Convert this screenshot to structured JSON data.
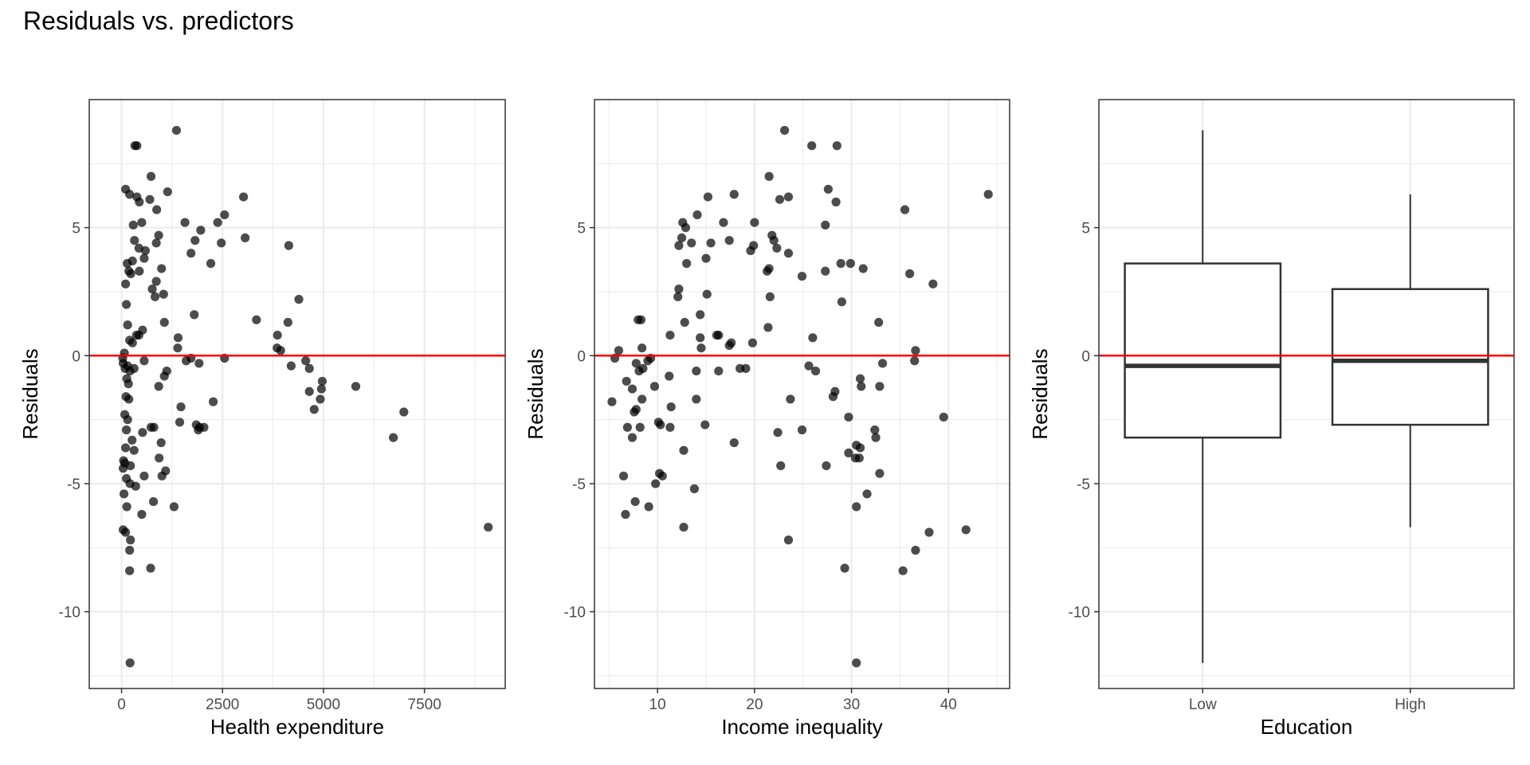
{
  "title": "Residuals vs. predictors",
  "colors": {
    "zero_line": "#ff0000",
    "point": "#000000",
    "grid": "#ebebeb",
    "border": "#333333"
  },
  "chart_data": [
    {
      "type": "scatter",
      "xlabel": "Health expenditure",
      "ylabel": "Residuals",
      "xlim": [
        -800,
        9500
      ],
      "ylim": [
        -13,
        10
      ],
      "xticks": [
        0,
        2500,
        5000,
        7500
      ],
      "yticks": [
        -10,
        -5,
        0,
        5
      ],
      "hline": 0,
      "grid": true,
      "points": [
        [
          1360,
          8.8
        ],
        [
          330,
          8.2
        ],
        [
          380,
          8.2
        ],
        [
          730,
          7.0
        ],
        [
          100,
          6.5
        ],
        [
          200,
          6.3
        ],
        [
          380,
          6.2
        ],
        [
          700,
          6.1
        ],
        [
          440,
          6.0
        ],
        [
          1140,
          6.4
        ],
        [
          3020,
          6.2
        ],
        [
          870,
          5.7
        ],
        [
          1570,
          5.2
        ],
        [
          2380,
          5.2
        ],
        [
          2550,
          5.5
        ],
        [
          290,
          5.1
        ],
        [
          500,
          5.2
        ],
        [
          1960,
          4.9
        ],
        [
          920,
          4.7
        ],
        [
          3060,
          4.6
        ],
        [
          320,
          4.5
        ],
        [
          860,
          4.4
        ],
        [
          1820,
          4.5
        ],
        [
          2470,
          4.4
        ],
        [
          4140,
          4.3
        ],
        [
          430,
          4.2
        ],
        [
          590,
          4.1
        ],
        [
          1720,
          4.0
        ],
        [
          140,
          3.6
        ],
        [
          270,
          3.7
        ],
        [
          560,
          3.8
        ],
        [
          2210,
          3.6
        ],
        [
          180,
          3.3
        ],
        [
          230,
          3.2
        ],
        [
          440,
          3.3
        ],
        [
          990,
          3.4
        ],
        [
          860,
          2.9
        ],
        [
          100,
          2.8
        ],
        [
          760,
          2.6
        ],
        [
          830,
          2.3
        ],
        [
          1040,
          2.4
        ],
        [
          4390,
          2.2
        ],
        [
          120,
          2.0
        ],
        [
          1800,
          1.6
        ],
        [
          3340,
          1.4
        ],
        [
          1060,
          1.3
        ],
        [
          4120,
          1.3
        ],
        [
          150,
          1.2
        ],
        [
          520,
          1.0
        ],
        [
          370,
          0.8
        ],
        [
          430,
          0.8
        ],
        [
          1400,
          0.7
        ],
        [
          200,
          0.6
        ],
        [
          270,
          0.5
        ],
        [
          3860,
          0.8
        ],
        [
          1390,
          0.3
        ],
        [
          3850,
          0.3
        ],
        [
          3940,
          0.2
        ],
        [
          70,
          0.1
        ],
        [
          30,
          -0.1
        ],
        [
          40,
          -0.3
        ],
        [
          560,
          -0.2
        ],
        [
          1600,
          -0.2
        ],
        [
          1720,
          -0.1
        ],
        [
          1920,
          -0.3
        ],
        [
          2550,
          -0.1
        ],
        [
          4200,
          -0.4
        ],
        [
          4560,
          -0.2
        ],
        [
          4650,
          -0.5
        ],
        [
          90,
          -0.5
        ],
        [
          150,
          -0.4
        ],
        [
          210,
          -0.6
        ],
        [
          310,
          -0.5
        ],
        [
          1120,
          -0.6
        ],
        [
          130,
          -0.9
        ],
        [
          1060,
          -0.8
        ],
        [
          170,
          -1.1
        ],
        [
          920,
          -1.2
        ],
        [
          4970,
          -1.0
        ],
        [
          5800,
          -1.2
        ],
        [
          4650,
          -1.4
        ],
        [
          4950,
          -1.3
        ],
        [
          110,
          -1.6
        ],
        [
          180,
          -1.7
        ],
        [
          4920,
          -1.7
        ],
        [
          1470,
          -2.0
        ],
        [
          2270,
          -1.8
        ],
        [
          4770,
          -2.1
        ],
        [
          6990,
          -2.2
        ],
        [
          80,
          -2.3
        ],
        [
          150,
          -2.5
        ],
        [
          1440,
          -2.6
        ],
        [
          1850,
          -2.7
        ],
        [
          1930,
          -2.8
        ],
        [
          2040,
          -2.8
        ],
        [
          1900,
          -2.9
        ],
        [
          120,
          -2.9
        ],
        [
          730,
          -2.8
        ],
        [
          800,
          -2.8
        ],
        [
          520,
          -3.0
        ],
        [
          260,
          -3.3
        ],
        [
          980,
          -3.4
        ],
        [
          6730,
          -3.2
        ],
        [
          100,
          -3.6
        ],
        [
          50,
          -4.1
        ],
        [
          310,
          -3.7
        ],
        [
          930,
          -4.0
        ],
        [
          80,
          -4.2
        ],
        [
          40,
          -4.4
        ],
        [
          220,
          -4.3
        ],
        [
          1090,
          -4.5
        ],
        [
          1000,
          -4.7
        ],
        [
          120,
          -4.8
        ],
        [
          560,
          -4.7
        ],
        [
          210,
          -5.0
        ],
        [
          350,
          -5.1
        ],
        [
          60,
          -5.4
        ],
        [
          790,
          -5.7
        ],
        [
          1300,
          -5.9
        ],
        [
          130,
          -5.9
        ],
        [
          500,
          -6.2
        ],
        [
          9080,
          -6.7
        ],
        [
          40,
          -6.8
        ],
        [
          100,
          -6.9
        ],
        [
          220,
          -7.2
        ],
        [
          200,
          -7.6
        ],
        [
          720,
          -8.3
        ],
        [
          200,
          -8.4
        ],
        [
          210,
          -12.0
        ]
      ]
    },
    {
      "type": "scatter",
      "xlabel": "Income inequality",
      "ylabel": "Residuals",
      "xlim": [
        3.5,
        46.3
      ],
      "ylim": [
        -13,
        10
      ],
      "xticks": [
        10,
        20,
        30,
        40
      ],
      "yticks": [
        -10,
        -5,
        0,
        5
      ],
      "hline": 0,
      "grid": true,
      "points": [
        [
          23.1,
          8.8
        ],
        [
          25.9,
          8.2
        ],
        [
          28.5,
          8.2
        ],
        [
          21.5,
          7.0
        ],
        [
          27.6,
          6.5
        ],
        [
          44.1,
          6.3
        ],
        [
          17.9,
          6.3
        ],
        [
          15.2,
          6.2
        ],
        [
          23.5,
          6.2
        ],
        [
          22.6,
          6.1
        ],
        [
          28.4,
          6.0
        ],
        [
          35.5,
          5.7
        ],
        [
          14.1,
          5.5
        ],
        [
          27.3,
          5.1
        ],
        [
          12.6,
          5.2
        ],
        [
          16.8,
          5.2
        ],
        [
          20.0,
          5.2
        ],
        [
          12.9,
          5.0
        ],
        [
          12.5,
          4.6
        ],
        [
          21.8,
          4.7
        ],
        [
          17.4,
          4.5
        ],
        [
          22.0,
          4.5
        ],
        [
          13.5,
          4.4
        ],
        [
          15.5,
          4.4
        ],
        [
          19.9,
          4.3
        ],
        [
          12.2,
          4.3
        ],
        [
          22.3,
          4.2
        ],
        [
          19.6,
          4.1
        ],
        [
          23.5,
          4.0
        ],
        [
          15.0,
          3.8
        ],
        [
          28.9,
          3.6
        ],
        [
          13.0,
          3.6
        ],
        [
          29.9,
          3.6
        ],
        [
          21.3,
          3.3
        ],
        [
          21.5,
          3.4
        ],
        [
          27.3,
          3.3
        ],
        [
          31.2,
          3.4
        ],
        [
          36.0,
          3.2
        ],
        [
          24.9,
          3.1
        ],
        [
          38.4,
          2.8
        ],
        [
          12.2,
          2.6
        ],
        [
          15.1,
          2.4
        ],
        [
          12.1,
          2.3
        ],
        [
          21.6,
          2.3
        ],
        [
          29.0,
          2.1
        ],
        [
          14.4,
          1.6
        ],
        [
          8.0,
          1.4
        ],
        [
          8.3,
          1.4
        ],
        [
          12.8,
          1.3
        ],
        [
          32.8,
          1.3
        ],
        [
          21.4,
          1.1
        ],
        [
          11.3,
          0.8
        ],
        [
          16.1,
          0.8
        ],
        [
          16.3,
          0.8
        ],
        [
          14.4,
          0.7
        ],
        [
          26.0,
          0.7
        ],
        [
          17.6,
          0.5
        ],
        [
          19.8,
          0.5
        ],
        [
          14.5,
          0.3
        ],
        [
          17.4,
          0.4
        ],
        [
          8.4,
          0.3
        ],
        [
          6.0,
          0.2
        ],
        [
          36.6,
          0.2
        ],
        [
          5.6,
          -0.1
        ],
        [
          9.3,
          -0.1
        ],
        [
          9.0,
          -0.2
        ],
        [
          7.8,
          -0.3
        ],
        [
          16.3,
          -0.6
        ],
        [
          18.5,
          -0.5
        ],
        [
          8.5,
          -0.5
        ],
        [
          19.1,
          -0.5
        ],
        [
          25.6,
          -0.4
        ],
        [
          26.3,
          -0.6
        ],
        [
          8.1,
          -0.6
        ],
        [
          33.2,
          -0.3
        ],
        [
          36.5,
          -0.2
        ],
        [
          11.2,
          -0.8
        ],
        [
          14.0,
          -0.6
        ],
        [
          30.9,
          -0.9
        ],
        [
          6.8,
          -1.0
        ],
        [
          7.4,
          -1.3
        ],
        [
          9.7,
          -1.2
        ],
        [
          28.3,
          -1.4
        ],
        [
          31.0,
          -1.2
        ],
        [
          32.9,
          -1.2
        ],
        [
          5.3,
          -1.8
        ],
        [
          8.4,
          -1.7
        ],
        [
          14.0,
          -1.7
        ],
        [
          23.7,
          -1.7
        ],
        [
          7.8,
          -2.1
        ],
        [
          7.6,
          -2.2
        ],
        [
          11.4,
          -2.0
        ],
        [
          28.1,
          -1.6
        ],
        [
          29.7,
          -2.4
        ],
        [
          39.5,
          -2.4
        ],
        [
          10.1,
          -2.6
        ],
        [
          10.3,
          -2.7
        ],
        [
          14.9,
          -2.7
        ],
        [
          8.2,
          -2.8
        ],
        [
          6.9,
          -2.8
        ],
        [
          11.3,
          -2.8
        ],
        [
          24.9,
          -2.9
        ],
        [
          32.4,
          -2.9
        ],
        [
          22.4,
          -3.0
        ],
        [
          32.5,
          -3.2
        ],
        [
          7.4,
          -3.2
        ],
        [
          17.9,
          -3.4
        ],
        [
          30.5,
          -3.5
        ],
        [
          30.9,
          -3.6
        ],
        [
          12.7,
          -3.7
        ],
        [
          29.7,
          -3.8
        ],
        [
          30.4,
          -4.0
        ],
        [
          30.8,
          -4.0
        ],
        [
          22.7,
          -4.3
        ],
        [
          27.4,
          -4.3
        ],
        [
          10.2,
          -4.6
        ],
        [
          10.5,
          -4.7
        ],
        [
          6.5,
          -4.7
        ],
        [
          32.9,
          -4.6
        ],
        [
          9.8,
          -5.0
        ],
        [
          13.8,
          -5.2
        ],
        [
          31.6,
          -5.4
        ],
        [
          7.7,
          -5.7
        ],
        [
          9.1,
          -5.9
        ],
        [
          30.5,
          -5.9
        ],
        [
          6.7,
          -6.2
        ],
        [
          12.7,
          -6.7
        ],
        [
          41.8,
          -6.8
        ],
        [
          38.0,
          -6.9
        ],
        [
          23.5,
          -7.2
        ],
        [
          36.6,
          -7.6
        ],
        [
          29.3,
          -8.3
        ],
        [
          35.3,
          -8.4
        ],
        [
          30.5,
          -12.0
        ]
      ]
    },
    {
      "type": "box",
      "xlabel": "Education",
      "ylabel": "Residuals",
      "ylim": [
        -13,
        10
      ],
      "yticks": [
        -10,
        -5,
        0,
        5
      ],
      "hline": 0,
      "grid": true,
      "categories": [
        "Low",
        "High"
      ],
      "boxes": [
        {
          "name": "Low",
          "whisker_low": -12.0,
          "q1": -3.2,
          "median": -0.4,
          "q3": 3.6,
          "whisker_high": 8.8
        },
        {
          "name": "High",
          "whisker_low": -6.7,
          "q1": -2.7,
          "median": -0.2,
          "q3": 2.6,
          "whisker_high": 6.3
        }
      ]
    }
  ]
}
